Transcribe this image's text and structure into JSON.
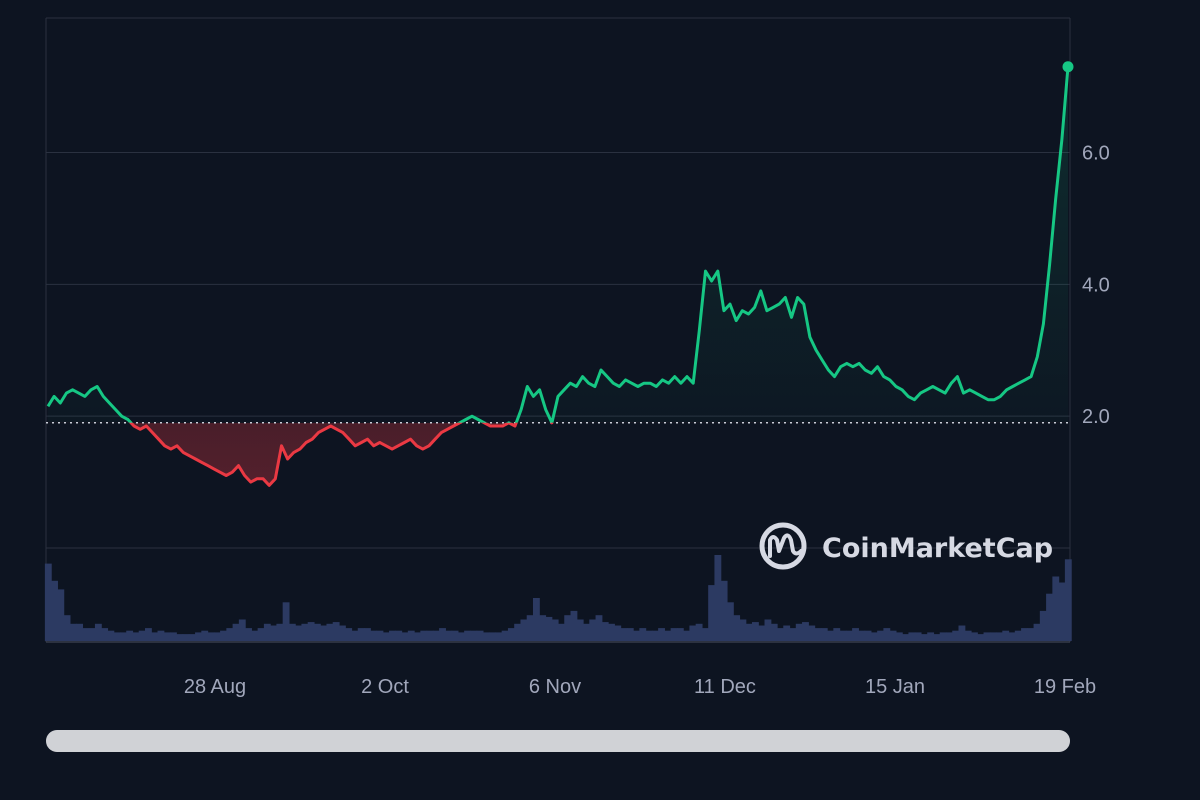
{
  "colors": {
    "background": "#0d1421",
    "up": "#16c784",
    "down": "#ea3943",
    "grid": "#2a3140",
    "volume": "#2c3a62",
    "baseline": "#c8ccd6",
    "tick_text": "#a1a7bb"
  },
  "watermark": {
    "brand": "CoinMarketCap",
    "icon": "coinmarketcap-logo-icon"
  },
  "chart_data": {
    "type": "line",
    "title": "",
    "xlabel": "",
    "ylabel": "",
    "x_ticks": [
      "28 Aug",
      "2 Oct",
      "6 Nov",
      "11 Dec",
      "15 Jan",
      "19 Feb"
    ],
    "y_ticks": [
      "2.0",
      "4.0",
      "6.0"
    ],
    "y_tick_values": [
      2.0,
      4.0,
      6.0
    ],
    "ylim": [
      0,
      8.04
    ],
    "baseline": 1.9,
    "grid": true,
    "series": [
      {
        "values": [
          2.15,
          2.3,
          2.2,
          2.35,
          2.4,
          2.35,
          2.3,
          2.4,
          2.45,
          2.3,
          2.2,
          2.1,
          2.0,
          1.95,
          1.85,
          1.8,
          1.85,
          1.75,
          1.65,
          1.55,
          1.5,
          1.55,
          1.45,
          1.4,
          1.35,
          1.3,
          1.25,
          1.2,
          1.15,
          1.1,
          1.15,
          1.25,
          1.1,
          1.0,
          1.05,
          1.05,
          0.95,
          1.05,
          1.55,
          1.35,
          1.45,
          1.5,
          1.6,
          1.65,
          1.75,
          1.8,
          1.85,
          1.8,
          1.75,
          1.65,
          1.55,
          1.6,
          1.65,
          1.55,
          1.6,
          1.55,
          1.5,
          1.55,
          1.6,
          1.65,
          1.55,
          1.5,
          1.55,
          1.65,
          1.75,
          1.8,
          1.85,
          1.9,
          1.95,
          2.0,
          1.95,
          1.9,
          1.85,
          1.85,
          1.85,
          1.9,
          1.85,
          2.1,
          2.45,
          2.3,
          2.4,
          2.1,
          1.9,
          2.3,
          2.4,
          2.5,
          2.45,
          2.6,
          2.5,
          2.45,
          2.7,
          2.6,
          2.5,
          2.45,
          2.55,
          2.5,
          2.45,
          2.5,
          2.5,
          2.45,
          2.55,
          2.5,
          2.6,
          2.5,
          2.6,
          2.5,
          3.3,
          4.2,
          4.05,
          4.2,
          3.6,
          3.7,
          3.45,
          3.6,
          3.55,
          3.65,
          3.9,
          3.6,
          3.65,
          3.7,
          3.8,
          3.5,
          3.8,
          3.7,
          3.2,
          3.0,
          2.85,
          2.7,
          2.6,
          2.75,
          2.8,
          2.75,
          2.8,
          2.7,
          2.65,
          2.75,
          2.6,
          2.55,
          2.45,
          2.4,
          2.3,
          2.25,
          2.35,
          2.4,
          2.45,
          2.4,
          2.35,
          2.5,
          2.6,
          2.35,
          2.4,
          2.35,
          2.3,
          2.25,
          2.25,
          2.3,
          2.4,
          2.45,
          2.5,
          2.55,
          2.6,
          2.9,
          3.4,
          4.3,
          5.3,
          6.2,
          7.3
        ]
      }
    ],
    "volume": [
      0.9,
      0.7,
      0.6,
      0.3,
      0.2,
      0.2,
      0.15,
      0.15,
      0.2,
      0.15,
      0.12,
      0.1,
      0.1,
      0.12,
      0.1,
      0.12,
      0.15,
      0.1,
      0.12,
      0.1,
      0.1,
      0.08,
      0.08,
      0.08,
      0.1,
      0.12,
      0.1,
      0.1,
      0.12,
      0.15,
      0.2,
      0.25,
      0.15,
      0.12,
      0.15,
      0.2,
      0.18,
      0.2,
      0.45,
      0.2,
      0.18,
      0.2,
      0.22,
      0.2,
      0.18,
      0.2,
      0.22,
      0.18,
      0.15,
      0.12,
      0.15,
      0.15,
      0.12,
      0.12,
      0.1,
      0.12,
      0.12,
      0.1,
      0.12,
      0.1,
      0.12,
      0.12,
      0.12,
      0.15,
      0.12,
      0.12,
      0.1,
      0.12,
      0.12,
      0.12,
      0.1,
      0.1,
      0.1,
      0.12,
      0.15,
      0.2,
      0.25,
      0.3,
      0.5,
      0.3,
      0.28,
      0.25,
      0.2,
      0.3,
      0.35,
      0.25,
      0.2,
      0.25,
      0.3,
      0.22,
      0.2,
      0.18,
      0.15,
      0.15,
      0.12,
      0.15,
      0.12,
      0.12,
      0.15,
      0.12,
      0.15,
      0.15,
      0.12,
      0.18,
      0.2,
      0.15,
      0.65,
      1.0,
      0.7,
      0.45,
      0.3,
      0.25,
      0.2,
      0.22,
      0.18,
      0.25,
      0.2,
      0.15,
      0.18,
      0.15,
      0.2,
      0.22,
      0.18,
      0.15,
      0.15,
      0.12,
      0.15,
      0.12,
      0.12,
      0.15,
      0.12,
      0.12,
      0.1,
      0.12,
      0.15,
      0.12,
      0.1,
      0.08,
      0.1,
      0.1,
      0.08,
      0.1,
      0.08,
      0.1,
      0.1,
      0.12,
      0.18,
      0.12,
      0.1,
      0.08,
      0.1,
      0.1,
      0.1,
      0.12,
      0.1,
      0.12,
      0.15,
      0.15,
      0.2,
      0.35,
      0.55,
      0.75,
      0.68,
      0.95
    ]
  },
  "scrollbar": {
    "position_fraction": 0.0,
    "thumb_fraction": 1.0
  }
}
